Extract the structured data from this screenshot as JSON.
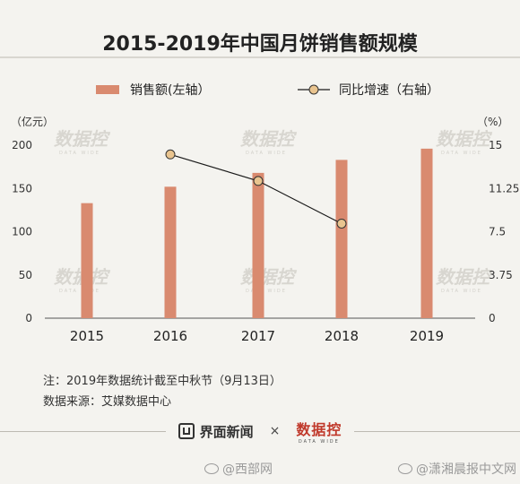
{
  "chart_data": {
    "type": "bar",
    "title": "2015-2019年中国月饼销售额规模",
    "categories": [
      "2015",
      "2016",
      "2017",
      "2018",
      "2019"
    ],
    "series": [
      {
        "name": "销售额(左轴）",
        "type": "bar",
        "axis": "left",
        "values": [
          133,
          152,
          168,
          183,
          196
        ]
      },
      {
        "name": "同比增速（右轴）",
        "type": "line",
        "axis": "right",
        "values": [
          null,
          14.2,
          11.9,
          8.2,
          null
        ]
      }
    ],
    "y_left": {
      "unit": "（亿元）",
      "ylim": [
        0,
        200
      ],
      "ticks": [
        "0",
        "50",
        "100",
        "150",
        "200"
      ]
    },
    "y_right": {
      "unit": "（%）",
      "ylim": [
        0,
        15
      ],
      "ticks": [
        "0",
        "3.75",
        "7.5",
        "11.25",
        "15"
      ]
    },
    "legend_position": "top",
    "grid": false,
    "colors": {
      "bar": "#d98a6f",
      "line": "#1a1a1a",
      "marker_fill": "#e9c48f",
      "marker_stroke": "#333333"
    }
  },
  "notes": {
    "note": "注：2019年数据统计截至中秋节（9月13日）",
    "source": "数据来源：艾媒数据中心"
  },
  "footer": {
    "brand": "界面新闻",
    "times": "×",
    "partner": "数据控",
    "partner_sub": "DATA WIDE"
  },
  "watermarks": {
    "left": "@西部网",
    "right": "@潇湘晨报中文网",
    "chart_logo": "数据控",
    "chart_logo_sub": "DATA WIDE"
  }
}
